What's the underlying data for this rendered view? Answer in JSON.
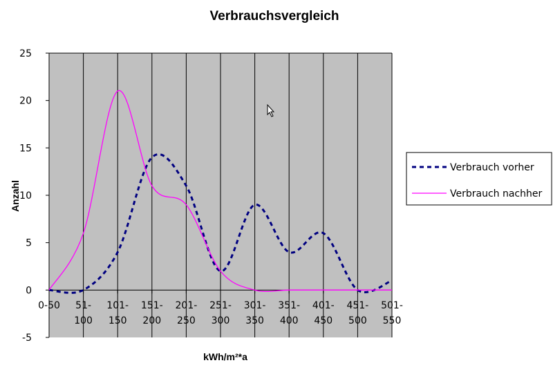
{
  "chart_data": {
    "type": "line",
    "title": "Verbrauchsvergleich",
    "xlabel": "kWh/m²*a",
    "ylabel": "Anzahl",
    "ylim": [
      -5,
      25
    ],
    "yticks": [
      "-5",
      "0",
      "5",
      "10",
      "15",
      "20",
      "25"
    ],
    "categories": [
      [
        "0-50",
        ""
      ],
      [
        "51-",
        "100"
      ],
      [
        "101-",
        "150"
      ],
      [
        "151-",
        "200"
      ],
      [
        "201-",
        "250"
      ],
      [
        "251-",
        "300"
      ],
      [
        "301-",
        "350"
      ],
      [
        "351-",
        "400"
      ],
      [
        "401-",
        "450"
      ],
      [
        "451-",
        "500"
      ],
      [
        "501-",
        "550"
      ]
    ],
    "grid": true,
    "plot_background": "#c0c0c0",
    "legend_position": "right",
    "series": [
      {
        "name": "Verbrauch vorher",
        "color": "#000080",
        "style": "dashed",
        "values": [
          0,
          0,
          4,
          14,
          11,
          2,
          9,
          4,
          6,
          0,
          1
        ]
      },
      {
        "name": "Verbrauch nachher",
        "color": "#ff00ff",
        "style": "solid",
        "values": [
          0,
          6,
          21,
          11,
          9,
          2,
          0,
          0,
          0,
          0,
          0
        ]
      }
    ]
  }
}
